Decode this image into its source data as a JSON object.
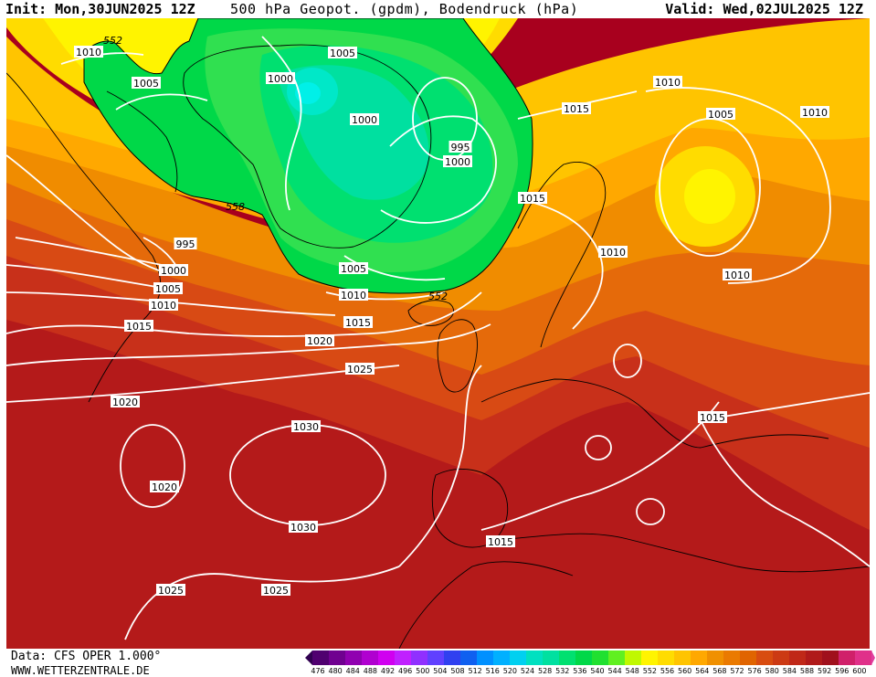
{
  "header": {
    "init": "Init: Mon,30JUN2025 12Z",
    "title": "500 hPa Geopot. (gpdm), Bodendruck (hPa)",
    "valid": "Valid: Wed,02JUL2025 12Z"
  },
  "footer": {
    "data": "Data: CFS OPER 1.000°",
    "site": "WWW.WETTERZENTRALE.DE"
  },
  "colors": {
    "background_max": "#a8001e",
    "trough_green": "#00d848",
    "trough_core": "#00e8c8",
    "ridge_yellow": "#fff400",
    "orange": "#f09000",
    "isobar": "#ffffff",
    "coast": "#000000"
  },
  "legend": {
    "scale_values": [
      "476",
      "480",
      "484",
      "488",
      "492",
      "496",
      "500",
      "504",
      "508",
      "512",
      "516",
      "520",
      "524",
      "528",
      "532",
      "536",
      "540",
      "544",
      "548",
      "552",
      "556",
      "560",
      "564",
      "568",
      "572",
      "576",
      "580",
      "584",
      "588",
      "592",
      "596",
      "600"
    ],
    "scale_colors": [
      "#500070",
      "#700090",
      "#9000b0",
      "#b000d0",
      "#d000f0",
      "#c020ff",
      "#9030ff",
      "#6040ff",
      "#3040f0",
      "#1060f0",
      "#0090ff",
      "#00b0ff",
      "#00d0f0",
      "#00e0c0",
      "#00e0a0",
      "#00e070",
      "#00d848",
      "#20e030",
      "#60f020",
      "#c0f800",
      "#fff400",
      "#ffdc00",
      "#ffc400",
      "#ffa800",
      "#f09000",
      "#ea7a00",
      "#e06400",
      "#d84c10",
      "#cc3a14",
      "#c02818",
      "#b01a1a",
      "#a0101c",
      "#d0206a",
      "#e0308a"
    ]
  },
  "map": {
    "height_labels": [
      "552",
      "552",
      "558"
    ],
    "isobar_labels": [
      "1010",
      "1005",
      "1000",
      "1005",
      "1000",
      "995",
      "1000",
      "995",
      "1000",
      "1005",
      "1010",
      "1015",
      "1020",
      "1025",
      "1020",
      "1030",
      "1020",
      "1030",
      "1025",
      "1025",
      "1010",
      "1005",
      "1010",
      "1015",
      "1015",
      "1010",
      "1010",
      "1005",
      "1015",
      "1010",
      "1015",
      "1015"
    ]
  }
}
